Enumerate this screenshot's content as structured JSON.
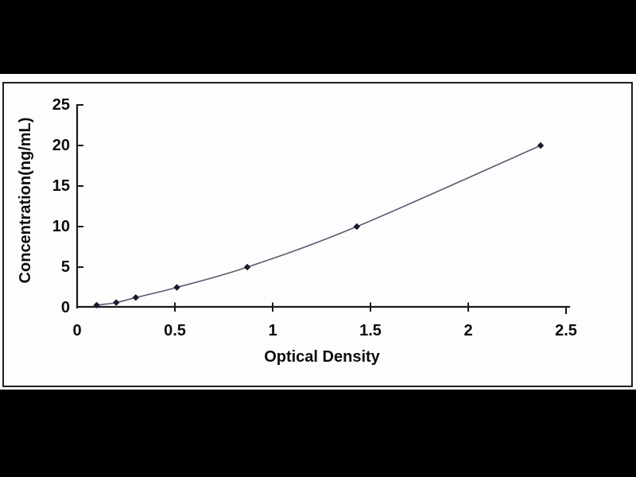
{
  "colors": {
    "letterbox": "#000000",
    "band": "#ffffff",
    "panel": "#fdfdfd",
    "frame": "#1f1f1f",
    "axis": "#1a1a1a",
    "text": "#0d0d0d"
  },
  "chart_data": {
    "type": "line",
    "title": "",
    "xlabel": "Optical Density",
    "ylabel": "Concentration(ng/mL)",
    "xlim": [
      0,
      2.5
    ],
    "ylim": [
      0,
      25
    ],
    "x_ticks": [
      0,
      0.5,
      1,
      1.5,
      2,
      2.5
    ],
    "x_tick_labels": [
      "0",
      "0.5",
      "1",
      "1.5",
      "2",
      "2.5"
    ],
    "y_ticks": [
      0,
      5,
      10,
      15,
      20,
      25
    ],
    "y_tick_labels": [
      "0",
      "5",
      "10",
      "15",
      "20",
      "25"
    ],
    "grid": false,
    "legend": "none",
    "series": [
      {
        "name": "standard-curve",
        "marker": "diamond",
        "line_color": "#5b5b74",
        "marker_color": "#191930",
        "x": [
          0.1,
          0.2,
          0.3,
          0.51,
          0.87,
          1.43,
          2.37
        ],
        "y": [
          0.31,
          0.63,
          1.25,
          2.5,
          5,
          10,
          20
        ]
      }
    ]
  }
}
